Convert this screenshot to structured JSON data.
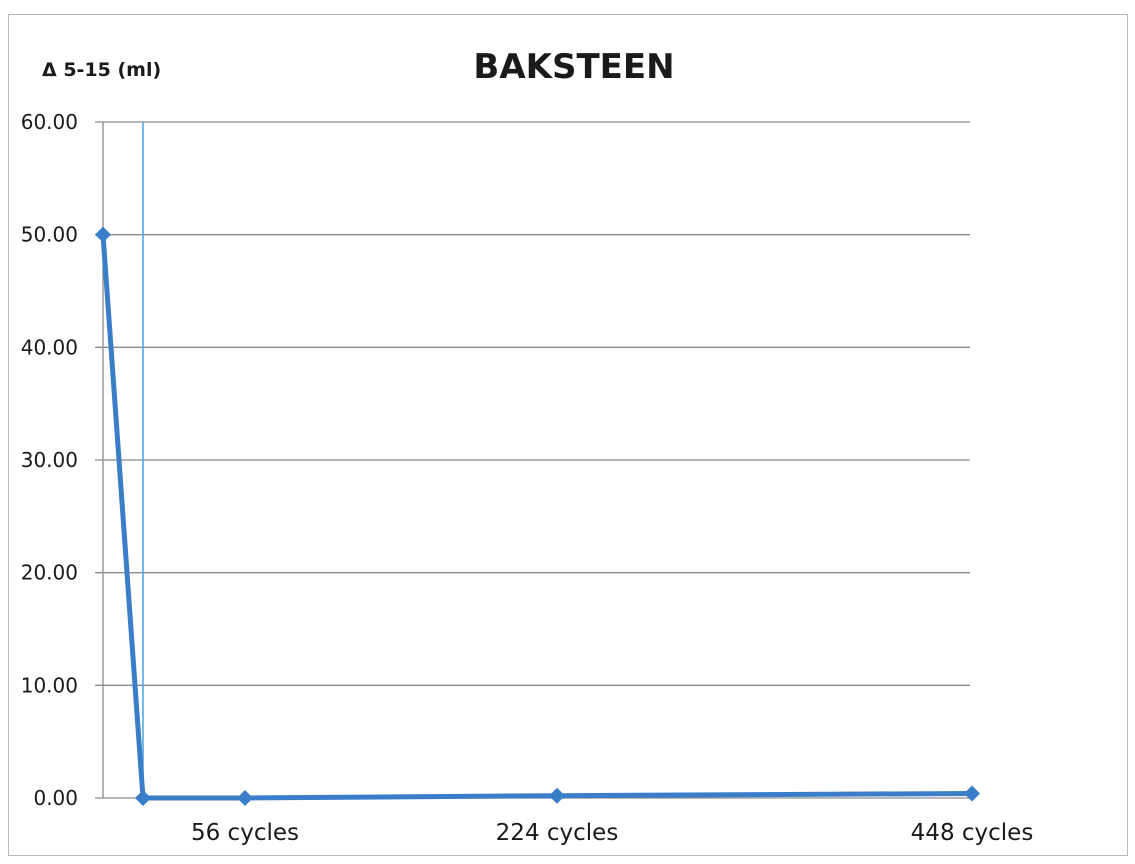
{
  "chart_data": {
    "type": "line",
    "title": "BAKSTEEN",
    "ylabel": "Δ 5-15 (ml)",
    "xlabel": "",
    "ylim": [
      0,
      60
    ],
    "yticks": [
      "0.00",
      "10.00",
      "20.00",
      "30.00",
      "40.00",
      "50.00",
      "60.00"
    ],
    "grid": true,
    "x_tick_labels": [
      {
        "label": "56 cycles",
        "x": 56
      },
      {
        "label": "224 cycles",
        "x": 224
      },
      {
        "label": "448 cycles",
        "x": 448
      }
    ],
    "series": [
      {
        "color": "#3a7dc9",
        "points": [
          {
            "x": 0,
            "y": 50.0
          },
          {
            "x": 20,
            "y": 0.0
          },
          {
            "x": 56,
            "y": 0.0
          },
          {
            "x": 224,
            "y": 0.2
          },
          {
            "x": 448,
            "y": 0.4
          }
        ]
      }
    ],
    "reference_lines": [
      {
        "x": 20,
        "color": "#4aa3df"
      }
    ],
    "colors": {
      "series": "#3a7dc9",
      "grid": "#8c8c8c",
      "reference": "#4aa3df"
    }
  }
}
